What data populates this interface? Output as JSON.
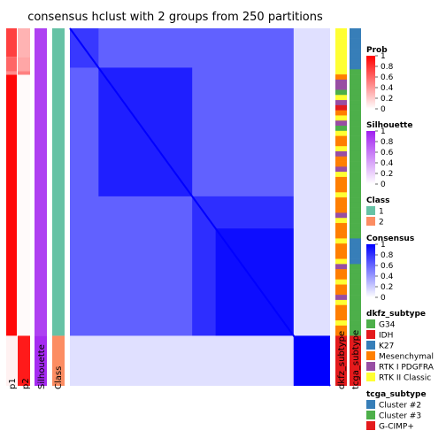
{
  "chart_data": {
    "type": "heatmap",
    "title": "consensus hclust with 2 groups from 250 partitions",
    "colors": {
      "prob_low": "#ffffff",
      "prob_high": "#ff0000",
      "silhouette_low": "#ffffff",
      "silhouette_high": "#a020f0",
      "consensus_low": "#ffffff",
      "consensus_high": "#0000ff",
      "class_1": "#66c2a5",
      "class_2": "#fc8d62"
    },
    "column_labels": [
      "p1",
      "p2",
      "Silhouette",
      "Class"
    ],
    "bottom_labels": [
      "dkfz_subtype",
      "tcga_subtype"
    ],
    "groups": [
      {
        "class": "1",
        "fraction": 0.86
      },
      {
        "class": "2",
        "fraction": 0.14
      }
    ],
    "legends": [
      {
        "title": "Prob",
        "type": "gradient",
        "low": "#ffffff",
        "high": "#ff0000",
        "ticks": [
          "1",
          "0.8",
          "0.6",
          "0.4",
          "0.2",
          "0"
        ]
      },
      {
        "title": "Silhouette",
        "type": "gradient",
        "low": "#ffffff",
        "high": "#a020f0",
        "ticks": [
          "1",
          "0.8",
          "0.6",
          "0.4",
          "0.2",
          "0"
        ]
      },
      {
        "title": "Class",
        "type": "discrete",
        "items": [
          {
            "label": "1",
            "color": "#66c2a5"
          },
          {
            "label": "2",
            "color": "#fc8d62"
          }
        ]
      },
      {
        "title": "Consensus",
        "type": "gradient",
        "low": "#ffffff",
        "high": "#0000ff",
        "ticks": [
          "1",
          "0.8",
          "0.6",
          "0.4",
          "0.2",
          "0"
        ]
      },
      {
        "title": "dkfz_subtype",
        "type": "discrete",
        "items": [
          {
            "label": "G34",
            "color": "#4daf4a"
          },
          {
            "label": "IDH",
            "color": "#e41a1c"
          },
          {
            "label": "K27",
            "color": "#377eb8"
          },
          {
            "label": "Mesenchymal",
            "color": "#ff7f00"
          },
          {
            "label": "RTK I PDGFRA",
            "color": "#984ea3"
          },
          {
            "label": "RTK II Classic",
            "color": "#ffff33"
          }
        ]
      },
      {
        "title": "tcga_subtype",
        "type": "discrete",
        "items": [
          {
            "label": "Cluster #2",
            "color": "#377eb8"
          },
          {
            "label": "Cluster #3",
            "color": "#4daf4a"
          },
          {
            "label": "G-CIMP+",
            "color": "#e41a1c"
          }
        ]
      }
    ]
  }
}
